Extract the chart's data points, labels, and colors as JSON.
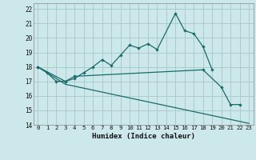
{
  "title": "",
  "xlabel": "Humidex (Indice chaleur)",
  "background_color": "#cce8eb",
  "grid_color": "#aacccc",
  "line_color": "#1a6b6b",
  "xlim": [
    -0.5,
    23.5
  ],
  "ylim": [
    14,
    22.4
  ],
  "yticks": [
    14,
    15,
    16,
    17,
    18,
    19,
    20,
    21,
    22
  ],
  "xticks": [
    0,
    1,
    2,
    3,
    4,
    5,
    6,
    7,
    8,
    9,
    10,
    11,
    12,
    13,
    14,
    15,
    16,
    17,
    18,
    19,
    20,
    21,
    22,
    23
  ],
  "line1_x": [
    0,
    1,
    2,
    3,
    4,
    5,
    6,
    7,
    8,
    9,
    10,
    11,
    12,
    13,
    15,
    16,
    17,
    18,
    19
  ],
  "line1_y": [
    18.0,
    17.6,
    17.0,
    17.0,
    17.2,
    17.6,
    18.0,
    18.5,
    18.1,
    18.8,
    19.5,
    19.3,
    19.6,
    19.2,
    21.7,
    20.5,
    20.3,
    19.4,
    17.8
  ],
  "line2_x": [
    0,
    3,
    4,
    18,
    20,
    21,
    22
  ],
  "line2_y": [
    18.0,
    17.0,
    17.35,
    17.8,
    16.6,
    15.4,
    15.4
  ],
  "line3_x": [
    0,
    3,
    23
  ],
  "line3_y": [
    18.0,
    16.8,
    14.1
  ],
  "marker": "D",
  "markersize": 2.2,
  "linewidth": 0.9
}
